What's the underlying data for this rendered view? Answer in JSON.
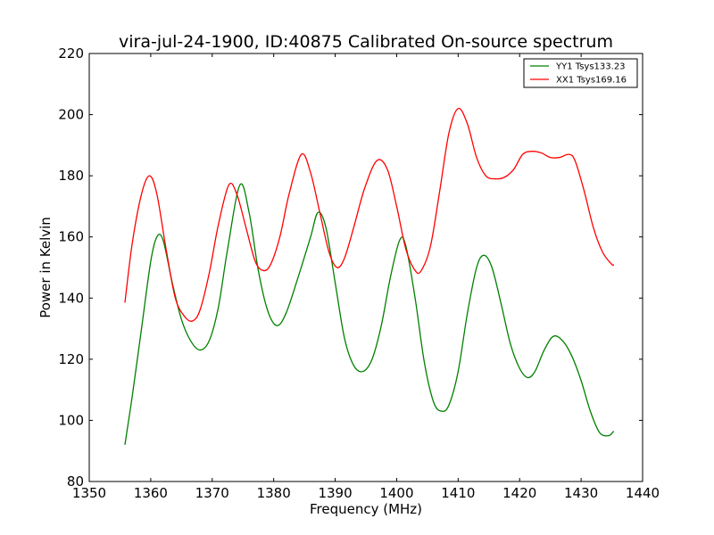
{
  "chart_data": {
    "type": "line",
    "title": "vira-jul-24-1900, ID:40875 Calibrated On-source spectrum",
    "xlabel": "Frequency (MHz)",
    "ylabel": "Power in Kelvin",
    "xlim": [
      1350,
      1440
    ],
    "ylim": [
      80,
      220
    ],
    "xticks": [
      1350,
      1360,
      1370,
      1380,
      1390,
      1400,
      1410,
      1420,
      1430,
      1440
    ],
    "yticks": [
      80,
      100,
      120,
      140,
      160,
      180,
      200,
      220
    ],
    "xtick_labels": [
      "1350",
      "1360",
      "1370",
      "1380",
      "1390",
      "1400",
      "1410",
      "1420",
      "1430",
      "1440"
    ],
    "ytick_labels": [
      "80",
      "100",
      "120",
      "140",
      "160",
      "180",
      "200",
      "220"
    ],
    "grid": false,
    "legend_position": "top-right",
    "series": [
      {
        "name": "YY1 Tsys133.23",
        "color": "#008000",
        "points": [
          [
            1355.8,
            92
          ],
          [
            1357,
            108
          ],
          [
            1358.5,
            130
          ],
          [
            1360,
            152
          ],
          [
            1361,
            160
          ],
          [
            1362,
            159
          ],
          [
            1363.5,
            145
          ],
          [
            1365,
            133
          ],
          [
            1366.5,
            126
          ],
          [
            1368,
            123
          ],
          [
            1369.5,
            126
          ],
          [
            1371,
            137
          ],
          [
            1372.5,
            156
          ],
          [
            1374.5,
            177
          ],
          [
            1376,
            168
          ],
          [
            1377.5,
            149
          ],
          [
            1379,
            136
          ],
          [
            1380.5,
            131
          ],
          [
            1382,
            135
          ],
          [
            1384,
            147
          ],
          [
            1386,
            160
          ],
          [
            1387.2,
            168
          ],
          [
            1388.5,
            163
          ],
          [
            1390,
            145
          ],
          [
            1391.5,
            127
          ],
          [
            1393,
            118
          ],
          [
            1394.5,
            116
          ],
          [
            1396,
            120
          ],
          [
            1397.5,
            131
          ],
          [
            1399,
            147
          ],
          [
            1400.5,
            159
          ],
          [
            1401.5,
            157
          ],
          [
            1403,
            140
          ],
          [
            1404.5,
            119
          ],
          [
            1406,
            106
          ],
          [
            1407.3,
            103
          ],
          [
            1408.5,
            105
          ],
          [
            1410,
            116
          ],
          [
            1411.5,
            135
          ],
          [
            1413,
            150
          ],
          [
            1414.2,
            154
          ],
          [
            1415.5,
            150
          ],
          [
            1417,
            138
          ],
          [
            1418.5,
            125
          ],
          [
            1420,
            117
          ],
          [
            1421.3,
            114
          ],
          [
            1422.5,
            116
          ],
          [
            1424,
            123
          ],
          [
            1425.5,
            127.5
          ],
          [
            1427,
            126
          ],
          [
            1428.5,
            121
          ],
          [
            1430,
            113
          ],
          [
            1431.5,
            103
          ],
          [
            1433,
            96
          ],
          [
            1434.5,
            95
          ],
          [
            1435.3,
            96.5
          ]
        ]
      },
      {
        "name": "XX1 Tsys169.16",
        "color": "#ff0000",
        "points": [
          [
            1355.8,
            138.5
          ],
          [
            1357,
            158
          ],
          [
            1358.5,
            174
          ],
          [
            1359.8,
            180
          ],
          [
            1361,
            174
          ],
          [
            1362.5,
            156
          ],
          [
            1364,
            140
          ],
          [
            1365.5,
            134
          ],
          [
            1366.8,
            132.5
          ],
          [
            1368,
            136
          ],
          [
            1369.5,
            148
          ],
          [
            1371,
            164
          ],
          [
            1372.7,
            177
          ],
          [
            1374,
            174
          ],
          [
            1375.5,
            163
          ],
          [
            1377,
            152
          ],
          [
            1378.3,
            149
          ],
          [
            1379.5,
            151
          ],
          [
            1381,
            160
          ],
          [
            1382.5,
            174
          ],
          [
            1384.5,
            187
          ],
          [
            1386,
            181
          ],
          [
            1387.5,
            168
          ],
          [
            1389,
            155
          ],
          [
            1390.3,
            150
          ],
          [
            1391.5,
            153
          ],
          [
            1393,
            163
          ],
          [
            1394.8,
            176
          ],
          [
            1396.8,
            185
          ],
          [
            1398.5,
            182
          ],
          [
            1400,
            170
          ],
          [
            1401.5,
            156
          ],
          [
            1403,
            149
          ],
          [
            1404,
            149
          ],
          [
            1405.5,
            157
          ],
          [
            1407,
            175
          ],
          [
            1408.5,
            194
          ],
          [
            1410,
            202
          ],
          [
            1411.5,
            197
          ],
          [
            1413,
            186
          ],
          [
            1414.5,
            180
          ],
          [
            1416,
            179
          ],
          [
            1417.5,
            179.5
          ],
          [
            1419,
            182
          ],
          [
            1420.5,
            187
          ],
          [
            1422,
            188
          ],
          [
            1423.5,
            187.5
          ],
          [
            1425,
            186
          ],
          [
            1426.5,
            186
          ],
          [
            1428,
            187
          ],
          [
            1429,
            185
          ],
          [
            1430.5,
            175
          ],
          [
            1432,
            163
          ],
          [
            1433.5,
            155
          ],
          [
            1435,
            151
          ],
          [
            1435.3,
            151
          ]
        ]
      }
    ]
  }
}
